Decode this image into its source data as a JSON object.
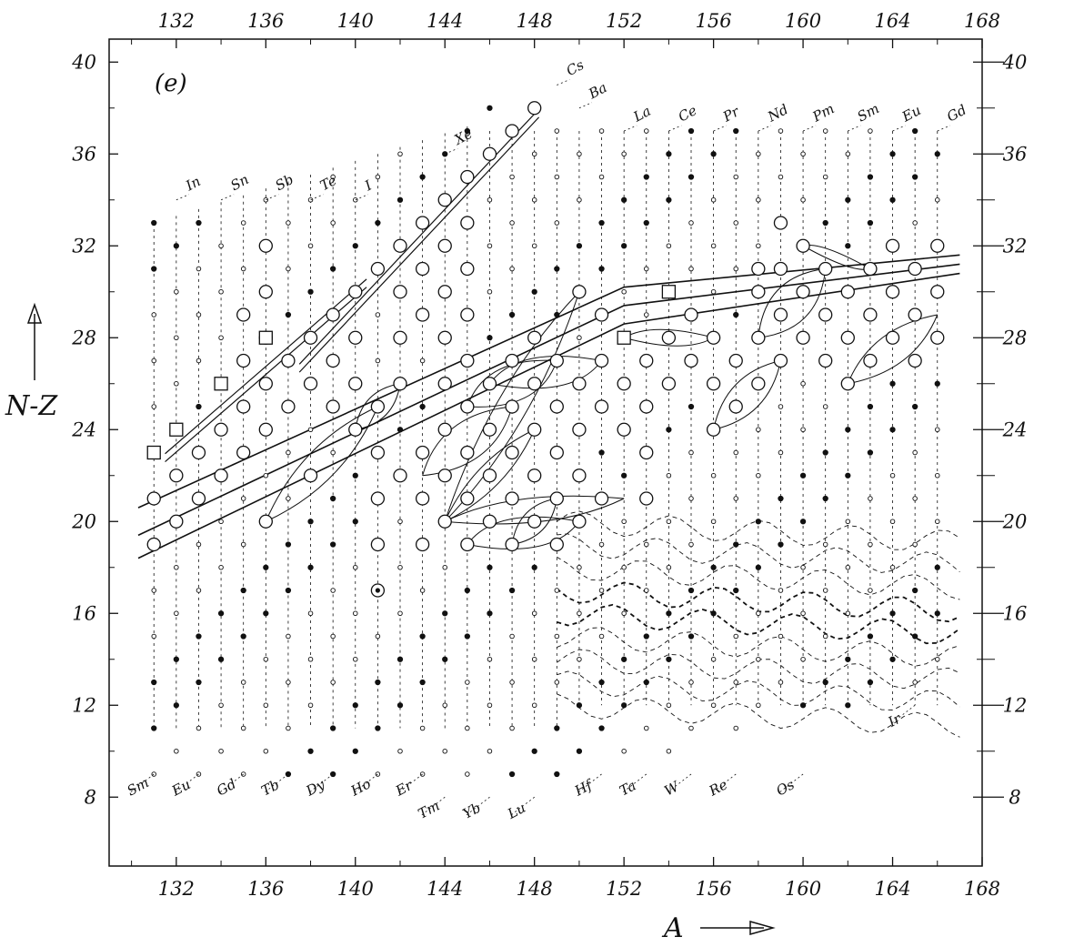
{
  "chart_data": {
    "type": "scatter",
    "panel_label": "(e)",
    "xlabel": "A",
    "ylabel": "N-Z",
    "xlim": [
      129,
      168
    ],
    "ylim": [
      5,
      41
    ],
    "x_ticks": [
      132,
      136,
      140,
      144,
      148,
      152,
      156,
      160,
      164,
      168
    ],
    "y_ticks": [
      8,
      12,
      16,
      20,
      24,
      28,
      32,
      36,
      40
    ],
    "right_minor_ticks": [
      10,
      14,
      18,
      22,
      26,
      30,
      34,
      38
    ],
    "grid": false,
    "element_labels_top": [
      {
        "name": "In",
        "x": 132,
        "y": 34
      },
      {
        "name": "Sn",
        "x": 134,
        "y": 34
      },
      {
        "name": "Sb",
        "x": 136,
        "y": 34
      },
      {
        "name": "Te",
        "x": 138,
        "y": 34
      },
      {
        "name": "I",
        "x": 140,
        "y": 34
      },
      {
        "name": "Xe",
        "x": 144,
        "y": 36
      },
      {
        "name": "Cs",
        "x": 149,
        "y": 39
      },
      {
        "name": "Ba",
        "x": 150,
        "y": 38
      },
      {
        "name": "La",
        "x": 152,
        "y": 37
      },
      {
        "name": "Ce",
        "x": 154,
        "y": 37
      },
      {
        "name": "Pr",
        "x": 156,
        "y": 37
      },
      {
        "name": "Nd",
        "x": 158,
        "y": 37
      },
      {
        "name": "Pm",
        "x": 160,
        "y": 37
      },
      {
        "name": "Sm",
        "x": 162,
        "y": 37
      },
      {
        "name": "Eu",
        "x": 164,
        "y": 37
      },
      {
        "name": "Gd",
        "x": 166,
        "y": 37
      }
    ],
    "element_labels_bottom": [
      {
        "name": "Sm",
        "x": 131,
        "y": 9
      },
      {
        "name": "Eu",
        "x": 133,
        "y": 9
      },
      {
        "name": "Gd",
        "x": 135,
        "y": 9
      },
      {
        "name": "Tb",
        "x": 137,
        "y": 9
      },
      {
        "name": "Dy",
        "x": 139,
        "y": 9
      },
      {
        "name": "Ho",
        "x": 141,
        "y": 9
      },
      {
        "name": "Er",
        "x": 143,
        "y": 9
      },
      {
        "name": "Tm",
        "x": 144,
        "y": 8
      },
      {
        "name": "Yb",
        "x": 146,
        "y": 8
      },
      {
        "name": "Lu",
        "x": 148,
        "y": 8
      },
      {
        "name": "Hf",
        "x": 151,
        "y": 9
      },
      {
        "name": "Ta",
        "x": 153,
        "y": 9
      },
      {
        "name": "W",
        "x": 155,
        "y": 9
      },
      {
        "name": "Re",
        "x": 157,
        "y": 9
      },
      {
        "name": "Os",
        "x": 160,
        "y": 9
      },
      {
        "name": "Ir",
        "x": 165,
        "y": 12
      }
    ],
    "series": [
      {
        "marker": "open-circle-large",
        "points": [
          [
            131,
            19
          ],
          [
            131,
            21
          ],
          [
            132,
            20
          ],
          [
            132,
            22
          ],
          [
            133,
            21
          ],
          [
            133,
            23
          ],
          [
            134,
            22
          ],
          [
            134,
            24
          ],
          [
            135,
            23
          ],
          [
            135,
            25
          ],
          [
            135,
            27
          ],
          [
            135,
            29
          ],
          [
            136,
            20
          ],
          [
            136,
            24
          ],
          [
            136,
            26
          ],
          [
            136,
            28
          ],
          [
            136,
            30
          ],
          [
            136,
            32
          ],
          [
            137,
            25
          ],
          [
            137,
            27
          ],
          [
            138,
            22
          ],
          [
            138,
            26
          ],
          [
            138,
            28
          ],
          [
            139,
            25
          ],
          [
            139,
            27
          ],
          [
            139,
            29
          ],
          [
            140,
            24
          ],
          [
            140,
            26
          ],
          [
            140,
            28
          ],
          [
            140,
            30
          ],
          [
            141,
            19
          ],
          [
            141,
            21
          ],
          [
            141,
            23
          ],
          [
            141,
            25
          ],
          [
            141,
            31
          ],
          [
            142,
            22
          ],
          [
            142,
            26
          ],
          [
            142,
            28
          ],
          [
            142,
            30
          ],
          [
            142,
            32
          ],
          [
            143,
            19
          ],
          [
            143,
            21
          ],
          [
            143,
            23
          ],
          [
            143,
            29
          ],
          [
            143,
            31
          ],
          [
            143,
            33
          ],
          [
            144,
            20
          ],
          [
            144,
            22
          ],
          [
            144,
            24
          ],
          [
            144,
            26
          ],
          [
            144,
            28
          ],
          [
            144,
            30
          ],
          [
            144,
            32
          ],
          [
            144,
            34
          ],
          [
            145,
            19
          ],
          [
            145,
            21
          ],
          [
            145,
            23
          ],
          [
            145,
            25
          ],
          [
            145,
            27
          ],
          [
            145,
            29
          ],
          [
            145,
            31
          ],
          [
            145,
            33
          ],
          [
            145,
            35
          ],
          [
            146,
            20
          ],
          [
            146,
            22
          ],
          [
            146,
            24
          ],
          [
            146,
            26
          ],
          [
            146,
            36
          ],
          [
            147,
            19
          ],
          [
            147,
            21
          ],
          [
            147,
            23
          ],
          [
            147,
            25
          ],
          [
            147,
            27
          ],
          [
            147,
            37
          ],
          [
            148,
            20
          ],
          [
            148,
            22
          ],
          [
            148,
            24
          ],
          [
            148,
            26
          ],
          [
            148,
            28
          ],
          [
            148,
            38
          ],
          [
            149,
            19
          ],
          [
            149,
            21
          ],
          [
            149,
            23
          ],
          [
            149,
            25
          ],
          [
            149,
            27
          ],
          [
            150,
            20
          ],
          [
            150,
            22
          ],
          [
            150,
            24
          ],
          [
            150,
            26
          ],
          [
            150,
            30
          ],
          [
            151,
            21
          ],
          [
            151,
            25
          ],
          [
            151,
            27
          ],
          [
            151,
            29
          ],
          [
            152,
            24
          ],
          [
            152,
            26
          ],
          [
            153,
            21
          ],
          [
            153,
            25
          ],
          [
            153,
            27
          ],
          [
            153,
            23
          ],
          [
            154,
            26
          ],
          [
            154,
            28
          ],
          [
            155,
            27
          ],
          [
            155,
            29
          ],
          [
            156,
            24
          ],
          [
            156,
            26
          ],
          [
            156,
            28
          ],
          [
            157,
            25
          ],
          [
            157,
            27
          ],
          [
            158,
            26
          ],
          [
            158,
            28
          ],
          [
            158,
            30
          ],
          [
            158,
            31
          ],
          [
            159,
            27
          ],
          [
            159,
            29
          ],
          [
            159,
            31
          ],
          [
            159,
            33
          ],
          [
            160,
            28
          ],
          [
            160,
            30
          ],
          [
            160,
            32
          ],
          [
            161,
            27
          ],
          [
            161,
            29
          ],
          [
            161,
            31
          ],
          [
            162,
            26
          ],
          [
            162,
            28
          ],
          [
            162,
            30
          ],
          [
            163,
            27
          ],
          [
            163,
            29
          ],
          [
            163,
            31
          ],
          [
            164,
            28
          ],
          [
            164,
            30
          ],
          [
            164,
            32
          ],
          [
            165,
            27
          ],
          [
            165,
            29
          ],
          [
            165,
            31
          ],
          [
            166,
            28
          ],
          [
            166,
            30
          ],
          [
            166,
            32
          ]
        ]
      },
      {
        "marker": "open-square",
        "points": [
          [
            131,
            23
          ],
          [
            132,
            24
          ],
          [
            134,
            26
          ],
          [
            136,
            28
          ],
          [
            152,
            28
          ],
          [
            154,
            30
          ]
        ]
      },
      {
        "marker": "dotted-circle",
        "points": [
          [
            141,
            17
          ]
        ]
      }
    ]
  }
}
